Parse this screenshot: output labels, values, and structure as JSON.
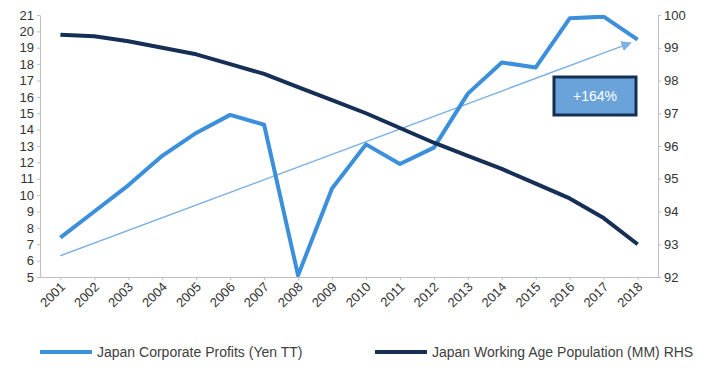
{
  "chart_data": {
    "type": "line",
    "x": [
      2001,
      2002,
      2003,
      2004,
      2005,
      2006,
      2007,
      2008,
      2009,
      2010,
      2011,
      2012,
      2013,
      2014,
      2015,
      2016,
      2017,
      2018
    ],
    "xlim": [
      2000.4,
      2018.6
    ],
    "xticks": [
      2001,
      2002,
      2003,
      2004,
      2005,
      2006,
      2007,
      2008,
      2009,
      2010,
      2011,
      2012,
      2013,
      2014,
      2015,
      2016,
      2017,
      2018
    ],
    "ylim": [
      5,
      21
    ],
    "yticks": [
      5,
      6,
      7,
      8,
      9,
      10,
      11,
      12,
      13,
      14,
      15,
      16,
      17,
      18,
      19,
      20,
      21
    ],
    "y2lim": [
      92,
      100
    ],
    "y2ticks": [
      92,
      93,
      94,
      95,
      96,
      97,
      98,
      99,
      100
    ],
    "series": [
      {
        "name": "Japan Corporate Profits (Yen TT)",
        "color": "#3b8fdb",
        "values": [
          7.4,
          9.0,
          10.6,
          12.4,
          13.8,
          14.9,
          14.3,
          5.1,
          10.4,
          13.1,
          11.9,
          12.9,
          16.2,
          18.1,
          17.8,
          20.8,
          20.9,
          19.5
        ]
      },
      {
        "name": "Japan Working Age Population (MM) RHS",
        "color": "#162f55",
        "axis": "y2",
        "values": [
          99.4,
          99.35,
          99.2,
          99.0,
          98.8,
          98.5,
          98.2,
          97.8,
          97.4,
          97.0,
          96.55,
          96.1,
          95.7,
          95.3,
          94.85,
          94.4,
          93.8,
          93.0
        ]
      }
    ],
    "trend": {
      "x": [
        2001,
        2017.8
      ],
      "values": [
        6.3,
        19.3
      ],
      "color": "#7fb2e3"
    },
    "annotations": [
      {
        "text": "+164%"
      }
    ],
    "legend": "bottom",
    "grid": false
  }
}
